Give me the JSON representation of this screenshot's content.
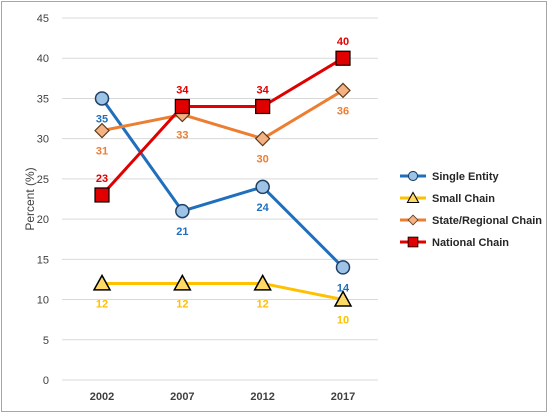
{
  "chart_data": {
    "type": "line",
    "categories": [
      "2002",
      "2007",
      "2012",
      "2017"
    ],
    "ylabel": "Percent (%)",
    "xlabel": "",
    "ylim": [
      0,
      45
    ],
    "yticks": [
      0,
      5,
      10,
      15,
      20,
      25,
      30,
      35,
      40,
      45
    ],
    "grid": true,
    "legend_position": "right",
    "series": [
      {
        "name": "Single Entity",
        "values": [
          35,
          21,
          24,
          14
        ],
        "color": "#1f6fbd",
        "marker": "circle",
        "marker_fill": "#9dc3e6",
        "label_color": "#1f6fbd",
        "label_pos": [
          "below",
          "below",
          "below",
          "below"
        ]
      },
      {
        "name": "Small Chain",
        "values": [
          12,
          12,
          12,
          10
        ],
        "color": "#ffc000",
        "marker": "triangle",
        "marker_fill": "#ffd966",
        "label_color": "#ffc000",
        "label_pos": [
          "below",
          "below",
          "below",
          "below"
        ]
      },
      {
        "name": "State/Regional Chain",
        "values": [
          31,
          33,
          30,
          36
        ],
        "color": "#ed7d31",
        "marker": "diamond",
        "marker_fill": "#f4b183",
        "label_color": "#ed7d31",
        "label_pos": [
          "below",
          "below",
          "below",
          "below"
        ]
      },
      {
        "name": "National Chain",
        "values": [
          23,
          34,
          34,
          40
        ],
        "color": "#e00000",
        "marker": "square",
        "marker_fill": "#e00000",
        "label_color": "#e00000",
        "label_pos": [
          "above",
          "above",
          "above",
          "above"
        ]
      }
    ]
  }
}
